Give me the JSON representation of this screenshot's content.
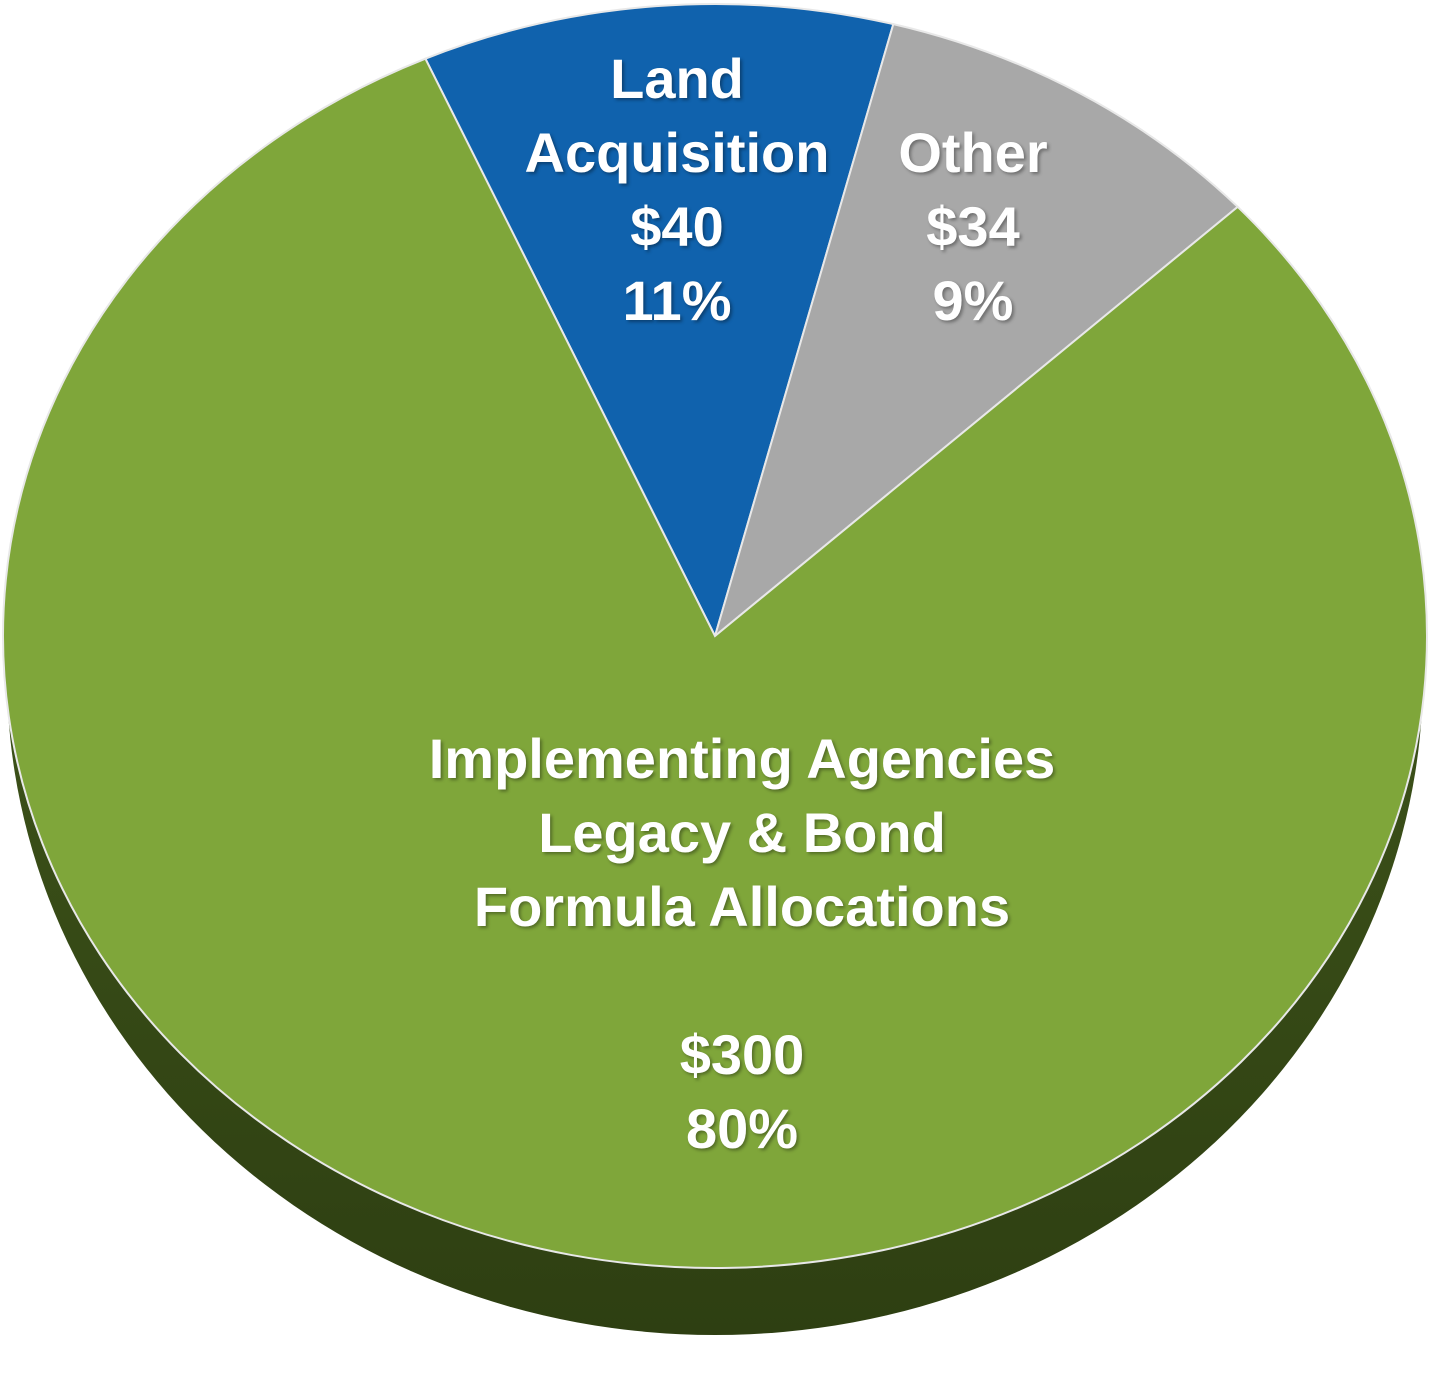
{
  "chart_data": {
    "type": "pie",
    "categories": [
      "Land\nAcquisition",
      "Other",
      "Implementing Agencies\nLegacy & Bond\nFormula Allocations"
    ],
    "values": [
      40,
      34,
      300
    ],
    "value_labels": [
      "$40",
      "$34",
      "$300"
    ],
    "shares": [
      11,
      9,
      80
    ],
    "share_labels": [
      "11%",
      "9%",
      "80%"
    ],
    "colors": [
      "#1062ad",
      "#a8a8a8",
      "#7fa63a"
    ]
  }
}
